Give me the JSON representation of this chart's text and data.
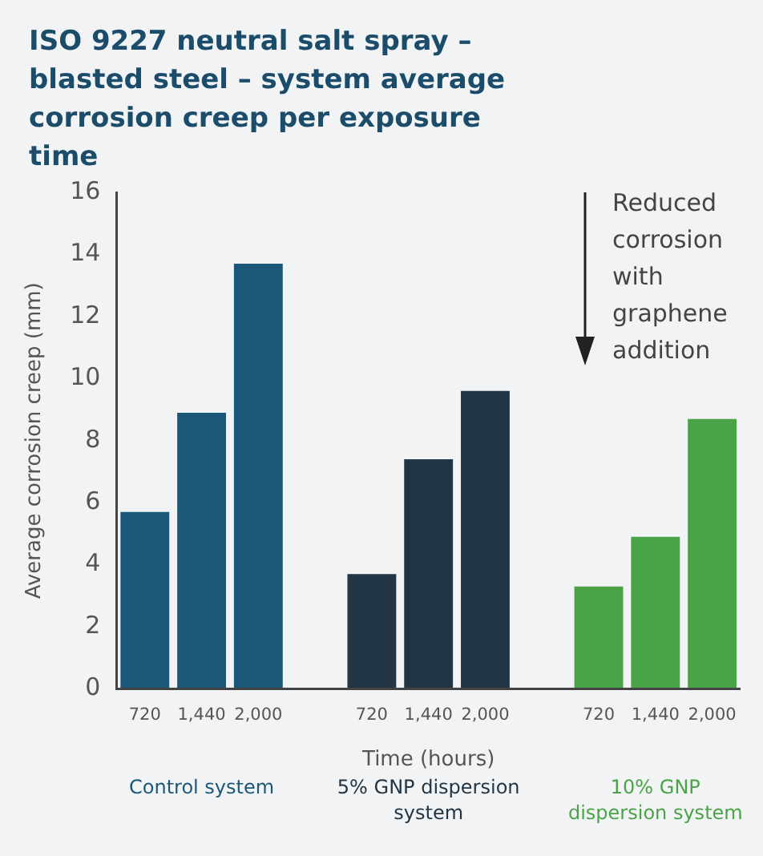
{
  "chart_data": {
    "type": "bar",
    "title": "ISO 9227 neutral salt spray – blasted steel – system average corrosion creep per exposure time",
    "xlabel": "Time (hours)",
    "ylabel": "Average corrosion creep (mm)",
    "categories": [
      "720",
      "1,440",
      "2,000",
      null,
      "720",
      "1,440",
      "2,000",
      null,
      "720",
      "1,440",
      "2,000"
    ],
    "series": [
      {
        "name": "Control system",
        "color": "#1a5778",
        "values": [
          5.7,
          8.9,
          13.7,
          null,
          null,
          null,
          null,
          null,
          null,
          null,
          null
        ]
      },
      {
        "name": "5% GNP dispersion system",
        "color": "#213544",
        "values": [
          null,
          null,
          null,
          null,
          3.7,
          7.4,
          9.6,
          null,
          null,
          null,
          null
        ]
      },
      {
        "name": "10% GNP dispersion system",
        "color": "#4aa346",
        "values": [
          null,
          null,
          null,
          null,
          null,
          null,
          null,
          null,
          3.3,
          4.9,
          8.7
        ]
      }
    ],
    "ylim": [
      0,
      16
    ],
    "yticks": [
      0,
      2,
      4,
      6,
      8,
      10,
      12,
      14,
      16
    ],
    "grid": false,
    "legend": false,
    "annotations": [
      "Reduced corrosion with graphene addition"
    ]
  }
}
